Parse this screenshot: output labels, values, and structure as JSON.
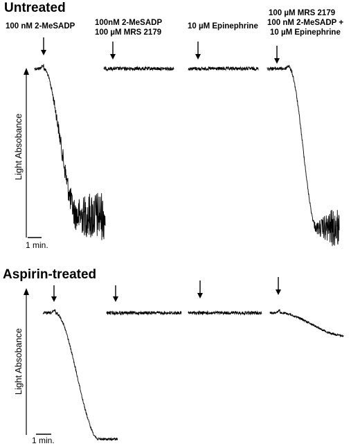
{
  "chart_data": [
    {
      "type": "line",
      "title": "Untreated",
      "ylabel": "Light Absobance",
      "scale_bar_label": "1 min.",
      "traces": [
        {
          "name": "100 nM 2-MeSADP",
          "label_lines": [
            "100 nM 2-MeSADP"
          ],
          "baseline": 0.02,
          "noise": 0.01,
          "end_level": 0.85,
          "end_noise": 0.14,
          "noise_grow_start": 0.1
        },
        {
          "name": "100nM 2-MeSADP + 100 µM MRS 2179",
          "label_lines": [
            "100nM 2-MeSADP",
            "100 µM MRS 2179"
          ],
          "baseline": 0.02,
          "noise": 0.01,
          "end_level": 0.035,
          "end_noise": 0.01
        },
        {
          "name": "10 µM Epinephrine",
          "label_lines": [
            "10 µM Epinephrine"
          ],
          "baseline": 0.02,
          "noise": 0.01,
          "end_level": 0.035,
          "end_noise": 0.01
        },
        {
          "name": "100 µM MRS 2179 + 100 nM 2-MeSADP + 10 µM Epinephrine",
          "label_lines": [
            "100 µM MRS 2179",
            "100 nM 2-MeSADP +",
            "10 µM Epinephrine"
          ],
          "baseline": 0.02,
          "noise": 0.01,
          "end_level": 0.92,
          "end_noise": 0.11,
          "noise_grow_start": 0.45
        }
      ]
    },
    {
      "type": "line",
      "title": "Aspirin-treated",
      "ylabel": "Light Absobance",
      "scale_bar_label": "1 min.",
      "traces": [
        {
          "name": "100 nM 2-MeSADP",
          "baseline": 0.03,
          "noise": 0.01,
          "end_level": 0.97,
          "end_noise": 0.03
        },
        {
          "name": "100nM 2-MeSADP + 100 µM MRS 2179",
          "baseline": 0.03,
          "noise": 0.012,
          "end_level": 0.03,
          "end_noise": 0.012
        },
        {
          "name": "10 µM Epinephrine",
          "baseline": 0.03,
          "noise": 0.012,
          "end_level": 0.03,
          "end_noise": 0.012
        },
        {
          "name": "100 µM MRS 2179 + 100 nM 2-MeSADP + 10 µM Epinephrine",
          "baseline": 0.03,
          "noise": 0.008,
          "end_level": 0.2,
          "end_noise": 0.008
        }
      ]
    }
  ]
}
